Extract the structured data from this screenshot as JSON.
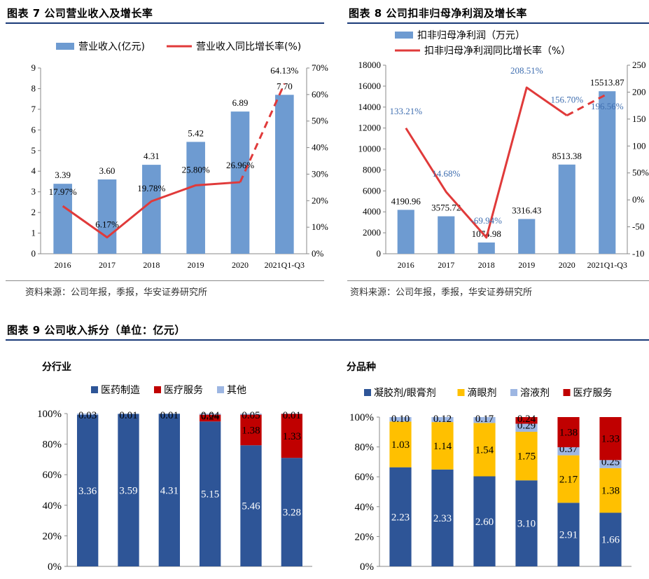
{
  "colors": {
    "bar_blue": "#6e9bd1",
    "line_red": "#e03a3a",
    "label_blue": "#3f6eb0",
    "stack_navy": "#2e5597",
    "stack_red": "#c00000",
    "stack_gold": "#ffc000",
    "stack_lightblue": "#9db6e2",
    "rule_navy": "#1a3a78"
  },
  "panels": {
    "fig7_title": "图表 7 公司营业收入及增长率",
    "fig8_title": "图表 8 公司扣非归母净利润及增长率",
    "fig9_title": "图表 9 公司收入拆分（单位：亿元）",
    "source_left": "资料来源：公司年报，季报，华安证券研究所",
    "source_right": "资料来源：公司年报，季报，华安证券研究所",
    "sub_left": "分行业",
    "sub_right": "分品种"
  },
  "chart_data": [
    {
      "id": "fig7",
      "type": "bar",
      "categories": [
        "2016",
        "2017",
        "2018",
        "2019",
        "2020",
        "2021Q1-Q3"
      ],
      "series": [
        {
          "name": "营业收入(亿元)",
          "kind": "bar",
          "axis": "left",
          "values": [
            3.39,
            3.6,
            4.31,
            5.42,
            6.89,
            7.7
          ],
          "labels": [
            "3.39",
            "3.60",
            "4.31",
            "5.42",
            "6.89",
            "7.70"
          ]
        },
        {
          "name": "营业收入同比增长率(%)",
          "kind": "line",
          "axis": "right",
          "values": [
            17.97,
            6.17,
            19.78,
            25.8,
            26.96,
            64.13
          ],
          "labels": [
            "17.97%",
            "6.17%",
            "19.78%",
            "25.80%",
            "26.96%",
            "64.13%"
          ],
          "last_segment_dashed": true
        }
      ],
      "y_left": {
        "min": 0,
        "max": 9,
        "ticks": [
          "0",
          "1",
          "2",
          "3",
          "4",
          "5",
          "6",
          "7",
          "8",
          "9"
        ]
      },
      "y_right": {
        "min": 0,
        "max": 70,
        "ticks": [
          "0%",
          "10%",
          "20%",
          "30%",
          "40%",
          "50%",
          "60%",
          "70%"
        ]
      },
      "legend_position": "top"
    },
    {
      "id": "fig8",
      "type": "bar",
      "categories": [
        "2016",
        "2017",
        "2018",
        "2019",
        "2020",
        "2021Q1-Q3"
      ],
      "series": [
        {
          "name": "扣非归母净利润（万元）",
          "kind": "bar",
          "axis": "left",
          "values": [
            4190.96,
            3575.72,
            1074.98,
            3316.43,
            8513.38,
            15513.87
          ],
          "labels": [
            "4190.96",
            "3575.72",
            "1074.98",
            "3316.43",
            "8513.38",
            "15513.87"
          ]
        },
        {
          "name": "扣非归母净利润同比增长率（%）",
          "kind": "line",
          "axis": "right",
          "values": [
            133.21,
            14.68,
            -69.94,
            208.51,
            156.7,
            196.56
          ],
          "labels": [
            "133.21%",
            "14.68%",
            "-69.94%",
            "208.51%",
            "156.70%",
            "196.56%"
          ],
          "last_segment_dashed": true
        }
      ],
      "y_left": {
        "min": 0,
        "max": 18000,
        "ticks": [
          "0",
          "2000",
          "4000",
          "6000",
          "8000",
          "10000",
          "12000",
          "14000",
          "16000",
          "18000"
        ]
      },
      "y_right": {
        "min": -100,
        "max": 250,
        "ticks": [
          "-10",
          "-50",
          "0%",
          "50%",
          "100",
          "150",
          "200",
          "250"
        ]
      },
      "legend_position": "top"
    },
    {
      "id": "fig9a",
      "title": "分行业",
      "type": "bar",
      "stacked_percent": true,
      "categories": [
        "",
        "",
        "",
        "",
        "",
        ""
      ],
      "series": [
        {
          "name": "医药制造",
          "color_key": "stack_navy",
          "values": [
            3.36,
            3.59,
            4.31,
            5.15,
            5.46,
            3.28
          ]
        },
        {
          "name": "医疗服务",
          "color_key": "stack_red",
          "values": [
            0,
            0,
            0,
            0.24,
            1.38,
            1.33
          ]
        },
        {
          "name": "其他",
          "color_key": "stack_lightblue",
          "values": [
            0.03,
            0.01,
            0.01,
            0.04,
            0.05,
            0.01
          ]
        }
      ],
      "y_ticks": [
        "0%",
        "20%",
        "40%",
        "60%",
        "80%",
        "100%"
      ],
      "legend_position": "top"
    },
    {
      "id": "fig9b",
      "title": "分品种",
      "type": "bar",
      "stacked_percent": true,
      "categories": [
        "",
        "",
        "",
        "",
        "",
        ""
      ],
      "series": [
        {
          "name": "凝胶剂/眼膏剂",
          "color_key": "stack_navy",
          "values": [
            2.23,
            2.33,
            2.6,
            3.1,
            2.91,
            1.66
          ]
        },
        {
          "name": "滴眼剂",
          "color_key": "stack_gold",
          "values": [
            1.03,
            1.14,
            1.54,
            1.75,
            2.17,
            1.38
          ]
        },
        {
          "name": "溶液剂",
          "color_key": "stack_lightblue",
          "values": [
            0.1,
            0.12,
            0.17,
            0.29,
            0.37,
            0.25
          ]
        },
        {
          "name": "医疗服务",
          "color_key": "stack_red",
          "values": [
            0,
            0,
            0,
            0.24,
            1.38,
            1.33
          ]
        }
      ],
      "y_ticks": [
        "0%",
        "20%",
        "40%",
        "60%",
        "80%",
        "100%"
      ],
      "legend_position": "top"
    }
  ]
}
